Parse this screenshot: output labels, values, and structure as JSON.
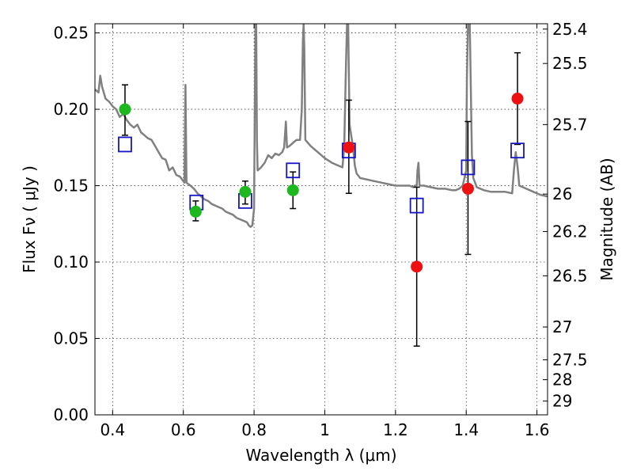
{
  "chart_data": {
    "type": "scatter",
    "xlabel": "Wavelength  λ (μm)",
    "ylabel_left": "Flux  Fν  ( μJy )",
    "ylabel_right": "Magnitude (AB)",
    "xlim": [
      0.35,
      1.63
    ],
    "ylim": [
      0.0,
      0.256
    ],
    "x_ticks": [
      0.4,
      0.6,
      0.8,
      1.0,
      1.2,
      1.4,
      1.6
    ],
    "x_tick_labels": [
      "0.4",
      "0.6",
      "0.8",
      "1",
      "1.2",
      "1.4",
      "1.6"
    ],
    "y_ticks": [
      0.0,
      0.05,
      0.1,
      0.15,
      0.2,
      0.25
    ],
    "y_tick_labels": [
      "0.00",
      "0.05",
      "0.10",
      "0.15",
      "0.20",
      "0.25"
    ],
    "right_axis_ticks": [
      {
        "label": "25.4",
        "flux": 0.2525
      },
      {
        "label": "25.5",
        "flux": 0.23
      },
      {
        "label": "25.7",
        "flux": 0.19
      },
      {
        "label": "26",
        "flux": 0.1445
      },
      {
        "label": "26.2",
        "flux": 0.12
      },
      {
        "label": "26.5",
        "flux": 0.091
      },
      {
        "label": "27",
        "flux": 0.0575
      },
      {
        "label": "27.5",
        "flux": 0.036
      },
      {
        "label": "28",
        "flux": 0.023
      },
      {
        "label": "29",
        "flux": 0.009
      }
    ],
    "grid": true,
    "colors": {
      "model": "#808080",
      "green": "#1db81d",
      "red": "#ee1111",
      "box": "#1515c8",
      "errorbar": "#000000"
    },
    "model_spectrum": [
      [
        0.35,
        0.213
      ],
      [
        0.36,
        0.211
      ],
      [
        0.365,
        0.222
      ],
      [
        0.37,
        0.215
      ],
      [
        0.38,
        0.207
      ],
      [
        0.39,
        0.205
      ],
      [
        0.4,
        0.202
      ],
      [
        0.41,
        0.2
      ],
      [
        0.42,
        0.195
      ],
      [
        0.43,
        0.197
      ],
      [
        0.44,
        0.193
      ],
      [
        0.45,
        0.19
      ],
      [
        0.46,
        0.188
      ],
      [
        0.47,
        0.19
      ],
      [
        0.48,
        0.185
      ],
      [
        0.49,
        0.183
      ],
      [
        0.5,
        0.181
      ],
      [
        0.51,
        0.18
      ],
      [
        0.52,
        0.176
      ],
      [
        0.53,
        0.172
      ],
      [
        0.54,
        0.168
      ],
      [
        0.55,
        0.167
      ],
      [
        0.56,
        0.16
      ],
      [
        0.57,
        0.162
      ],
      [
        0.58,
        0.157
      ],
      [
        0.59,
        0.156
      ],
      [
        0.6,
        0.153
      ],
      [
        0.603,
        0.152
      ],
      [
        0.606,
        0.216
      ],
      [
        0.609,
        0.152
      ],
      [
        0.62,
        0.15
      ],
      [
        0.63,
        0.148
      ],
      [
        0.64,
        0.145
      ],
      [
        0.65,
        0.143
      ],
      [
        0.66,
        0.141
      ],
      [
        0.67,
        0.14
      ],
      [
        0.68,
        0.138
      ],
      [
        0.69,
        0.137
      ],
      [
        0.7,
        0.136
      ],
      [
        0.71,
        0.135
      ],
      [
        0.72,
        0.133
      ],
      [
        0.73,
        0.132
      ],
      [
        0.74,
        0.131
      ],
      [
        0.75,
        0.129
      ],
      [
        0.76,
        0.128
      ],
      [
        0.77,
        0.127
      ],
      [
        0.78,
        0.126
      ],
      [
        0.785,
        0.124
      ],
      [
        0.79,
        0.123
      ],
      [
        0.795,
        0.124
      ],
      [
        0.8,
        0.135
      ],
      [
        0.802,
        0.2
      ],
      [
        0.804,
        0.256
      ],
      [
        0.806,
        0.256
      ],
      [
        0.808,
        0.18
      ],
      [
        0.81,
        0.16
      ],
      [
        0.82,
        0.162
      ],
      [
        0.83,
        0.165
      ],
      [
        0.84,
        0.17
      ],
      [
        0.85,
        0.168
      ],
      [
        0.86,
        0.171
      ],
      [
        0.87,
        0.17
      ],
      [
        0.88,
        0.172
      ],
      [
        0.885,
        0.175
      ],
      [
        0.89,
        0.192
      ],
      [
        0.893,
        0.175
      ],
      [
        0.9,
        0.176
      ],
      [
        0.91,
        0.178
      ],
      [
        0.92,
        0.18
      ],
      [
        0.93,
        0.18
      ],
      [
        0.935,
        0.2
      ],
      [
        0.938,
        0.245
      ],
      [
        0.94,
        0.256
      ],
      [
        0.942,
        0.24
      ],
      [
        0.945,
        0.18
      ],
      [
        0.96,
        0.176
      ],
      [
        0.98,
        0.172
      ],
      [
        1.0,
        0.168
      ],
      [
        1.02,
        0.165
      ],
      [
        1.04,
        0.163
      ],
      [
        1.05,
        0.162
      ],
      [
        1.055,
        0.175
      ],
      [
        1.06,
        0.23
      ],
      [
        1.063,
        0.256
      ],
      [
        1.066,
        0.256
      ],
      [
        1.07,
        0.19
      ],
      [
        1.08,
        0.175
      ],
      [
        1.085,
        0.163
      ],
      [
        1.09,
        0.158
      ],
      [
        1.1,
        0.155
      ],
      [
        1.12,
        0.154
      ],
      [
        1.14,
        0.153
      ],
      [
        1.16,
        0.152
      ],
      [
        1.18,
        0.151
      ],
      [
        1.2,
        0.15
      ],
      [
        1.22,
        0.15
      ],
      [
        1.24,
        0.15
      ],
      [
        1.25,
        0.149
      ],
      [
        1.255,
        0.15
      ],
      [
        1.26,
        0.15
      ],
      [
        1.262,
        0.16
      ],
      [
        1.265,
        0.165
      ],
      [
        1.268,
        0.15
      ],
      [
        1.28,
        0.15
      ],
      [
        1.3,
        0.149
      ],
      [
        1.32,
        0.148
      ],
      [
        1.34,
        0.148
      ],
      [
        1.36,
        0.147
      ],
      [
        1.37,
        0.147
      ],
      [
        1.38,
        0.148
      ],
      [
        1.39,
        0.15
      ],
      [
        1.4,
        0.16
      ],
      [
        1.402,
        0.22
      ],
      [
        1.405,
        0.256
      ],
      [
        1.41,
        0.256
      ],
      [
        1.413,
        0.215
      ],
      [
        1.416,
        0.17
      ],
      [
        1.42,
        0.155
      ],
      [
        1.43,
        0.149
      ],
      [
        1.45,
        0.147
      ],
      [
        1.47,
        0.146
      ],
      [
        1.49,
        0.146
      ],
      [
        1.51,
        0.146
      ],
      [
        1.53,
        0.145
      ],
      [
        1.535,
        0.16
      ],
      [
        1.54,
        0.172
      ],
      [
        1.545,
        0.163
      ],
      [
        1.55,
        0.15
      ],
      [
        1.57,
        0.148
      ],
      [
        1.59,
        0.146
      ],
      [
        1.61,
        0.144
      ],
      [
        1.63,
        0.143
      ]
    ],
    "green_points": [
      {
        "x": 0.435,
        "y": 0.2,
        "yerr_lo": 0.183,
        "yerr_hi": 0.216
      },
      {
        "x": 0.635,
        "y": 0.133,
        "yerr_lo": 0.127,
        "yerr_hi": 0.14
      },
      {
        "x": 0.775,
        "y": 0.146,
        "yerr_lo": 0.138,
        "yerr_hi": 0.153
      },
      {
        "x": 0.91,
        "y": 0.147,
        "yerr_lo": 0.135,
        "yerr_hi": 0.159
      }
    ],
    "red_points": [
      {
        "x": 1.068,
        "y": 0.175,
        "yerr_lo": 0.145,
        "yerr_hi": 0.206
      },
      {
        "x": 1.26,
        "y": 0.097,
        "yerr_lo": 0.045,
        "yerr_hi": 0.149
      },
      {
        "x": 1.405,
        "y": 0.148,
        "yerr_lo": 0.105,
        "yerr_hi": 0.192
      },
      {
        "x": 1.545,
        "y": 0.207,
        "yerr_lo": 0.177,
        "yerr_hi": 0.237
      }
    ],
    "box_points": [
      {
        "x": 0.435,
        "y": 0.177
      },
      {
        "x": 0.637,
        "y": 0.139
      },
      {
        "x": 0.775,
        "y": 0.14
      },
      {
        "x": 0.91,
        "y": 0.16
      },
      {
        "x": 1.068,
        "y": 0.173
      },
      {
        "x": 1.26,
        "y": 0.137
      },
      {
        "x": 1.405,
        "y": 0.162
      },
      {
        "x": 1.545,
        "y": 0.173
      }
    ]
  }
}
